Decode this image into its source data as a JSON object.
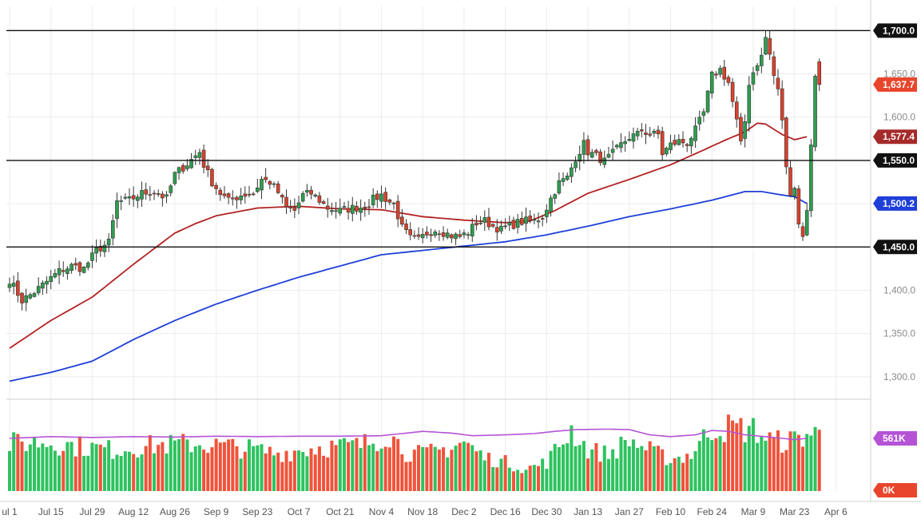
{
  "chart_data": {
    "type": "candlestick",
    "price_axis": {
      "ticks": [
        "1,700.0",
        "1,650.0",
        "1,600.0",
        "1,550.0",
        "1,500.0",
        "1,450.0",
        "1,400.0",
        "1,350.0",
        "1,300.0"
      ],
      "tick_values": [
        1700,
        1650,
        1600,
        1550,
        1500,
        1450,
        1400,
        1350,
        1300
      ],
      "range": [
        1274,
        1728
      ]
    },
    "x_axis": {
      "labels": [
        "ul 1",
        "Jul 15",
        "Jul 29",
        "Aug 12",
        "Aug 26",
        "Sep 9",
        "Sep 23",
        "Oct 7",
        "Oct 21",
        "Nov 4",
        "Nov 18",
        "Dec 2",
        "Dec 16",
        "Dec 30",
        "Jan 13",
        "Jan 27",
        "Feb 10",
        "Feb 24",
        "Mar 9",
        "Mar 23",
        "Apr 6"
      ],
      "label_bar_index": [
        0,
        10,
        20,
        30,
        40,
        50,
        60,
        70,
        80,
        90,
        100,
        110,
        120,
        130,
        140,
        150,
        160,
        170,
        180,
        190,
        200
      ]
    },
    "horizontal_levels": [
      1700,
      1550,
      1450
    ],
    "price_labels": [
      {
        "text": "1,700.0",
        "value": 1700,
        "color": "#111111"
      },
      {
        "text": "1,637.7",
        "value": 1637.7,
        "color": "#e8452c"
      },
      {
        "text": "1,577.4",
        "value": 1577.4,
        "color": "#a52a2a"
      },
      {
        "text": "1,550.0",
        "value": 1550,
        "color": "#111111"
      },
      {
        "text": "1,500.2",
        "value": 1500.2,
        "color": "#1e3fd8"
      },
      {
        "text": "1,450.0",
        "value": 1450,
        "color": "#111111"
      }
    ],
    "ma_fast": {
      "color": "#b22222",
      "points": [
        [
          0,
          1333
        ],
        [
          10,
          1365
        ],
        [
          20,
          1392
        ],
        [
          30,
          1430
        ],
        [
          40,
          1466
        ],
        [
          45,
          1477
        ],
        [
          50,
          1486
        ],
        [
          60,
          1495
        ],
        [
          70,
          1497
        ],
        [
          80,
          1494
        ],
        [
          90,
          1493
        ],
        [
          100,
          1485
        ],
        [
          110,
          1481
        ],
        [
          120,
          1478
        ],
        [
          126,
          1480
        ],
        [
          132,
          1492
        ],
        [
          140,
          1512
        ],
        [
          150,
          1528
        ],
        [
          160,
          1545
        ],
        [
          168,
          1562
        ],
        [
          173,
          1573
        ],
        [
          178,
          1583
        ],
        [
          181,
          1593
        ],
        [
          183,
          1592
        ],
        [
          187,
          1580
        ],
        [
          190,
          1574
        ],
        [
          193,
          1577.4
        ]
      ]
    },
    "ma_slow": {
      "color": "#1e3fd8",
      "points": [
        [
          0,
          1295
        ],
        [
          10,
          1305
        ],
        [
          20,
          1318
        ],
        [
          30,
          1343
        ],
        [
          40,
          1365
        ],
        [
          50,
          1384
        ],
        [
          60,
          1400
        ],
        [
          70,
          1415
        ],
        [
          80,
          1428
        ],
        [
          90,
          1441
        ],
        [
          100,
          1446
        ],
        [
          110,
          1451
        ],
        [
          120,
          1456
        ],
        [
          130,
          1464
        ],
        [
          140,
          1474
        ],
        [
          150,
          1485
        ],
        [
          160,
          1494
        ],
        [
          170,
          1504
        ],
        [
          178,
          1514
        ],
        [
          182,
          1514
        ],
        [
          187,
          1510
        ],
        [
          190,
          1508
        ],
        [
          193,
          1500.2
        ]
      ]
    },
    "candle_anchors": [
      [
        0,
        1412
      ],
      [
        3,
        1388
      ],
      [
        6,
        1398
      ],
      [
        9,
        1410
      ],
      [
        12,
        1422
      ],
      [
        15,
        1428
      ],
      [
        18,
        1425
      ],
      [
        21,
        1446
      ],
      [
        24,
        1455
      ],
      [
        26,
        1502
      ],
      [
        29,
        1504
      ],
      [
        32,
        1512
      ],
      [
        35,
        1514
      ],
      [
        38,
        1506
      ],
      [
        40,
        1534
      ],
      [
        43,
        1546
      ],
      [
        46,
        1560
      ],
      [
        47,
        1545
      ],
      [
        49,
        1525
      ],
      [
        51,
        1512
      ],
      [
        53,
        1503
      ],
      [
        56,
        1510
      ],
      [
        59,
        1512
      ],
      [
        61,
        1528
      ],
      [
        63,
        1525
      ],
      [
        65,
        1513
      ],
      [
        67,
        1495
      ],
      [
        69,
        1492
      ],
      [
        71,
        1510
      ],
      [
        73,
        1512
      ],
      [
        75,
        1504
      ],
      [
        77,
        1495
      ],
      [
        80,
        1492
      ],
      [
        83,
        1495
      ],
      [
        85,
        1496
      ],
      [
        87,
        1500
      ],
      [
        88,
        1505
      ],
      [
        90,
        1510
      ],
      [
        92,
        1502
      ],
      [
        93,
        1500
      ],
      [
        95,
        1472
      ],
      [
        97,
        1460
      ],
      [
        99,
        1458
      ],
      [
        101,
        1466
      ],
      [
        103,
        1470
      ],
      [
        105,
        1467
      ],
      [
        107,
        1463
      ],
      [
        109,
        1462
      ],
      [
        111,
        1467
      ],
      [
        113,
        1478
      ],
      [
        115,
        1480
      ],
      [
        117,
        1474
      ],
      [
        119,
        1470
      ],
      [
        121,
        1474
      ],
      [
        123,
        1478
      ],
      [
        125,
        1480
      ],
      [
        127,
        1480
      ],
      [
        129,
        1485
      ],
      [
        131,
        1506
      ],
      [
        133,
        1524
      ],
      [
        135,
        1530
      ],
      [
        137,
        1553
      ],
      [
        139,
        1569
      ],
      [
        140,
        1560
      ],
      [
        142,
        1555
      ],
      [
        144,
        1549
      ],
      [
        146,
        1558
      ],
      [
        148,
        1568
      ],
      [
        150,
        1577
      ],
      [
        152,
        1580
      ],
      [
        153,
        1585
      ],
      [
        155,
        1580
      ],
      [
        157,
        1580
      ],
      [
        158,
        1558
      ],
      [
        160,
        1568
      ],
      [
        162,
        1572
      ],
      [
        164,
        1570
      ],
      [
        166,
        1585
      ],
      [
        168,
        1605
      ],
      [
        170,
        1648
      ],
      [
        172,
        1655
      ],
      [
        174,
        1640
      ],
      [
        176,
        1595
      ],
      [
        177,
        1568
      ],
      [
        178,
        1595
      ],
      [
        179,
        1640
      ],
      [
        180,
        1652
      ],
      [
        181,
        1663
      ],
      [
        182,
        1670
      ],
      [
        183,
        1692
      ],
      [
        184,
        1672
      ],
      [
        185,
        1648
      ],
      [
        186,
        1630
      ],
      [
        187,
        1598
      ],
      [
        188,
        1540
      ],
      [
        189,
        1514
      ],
      [
        190,
        1520
      ],
      [
        191,
        1476
      ],
      [
        192,
        1465
      ],
      [
        193,
        1490
      ],
      [
        194,
        1570
      ],
      [
        195,
        1650
      ],
      [
        196,
        1637.7
      ]
    ],
    "candle_colors": {
      "up": "#2e9e4f",
      "down": "#d9412c"
    },
    "volume": {
      "axis_labels": [
        {
          "text": "561K",
          "color": "#b553d6"
        },
        {
          "text": "0K",
          "color": "#e8452c"
        }
      ],
      "max": 1000,
      "ma_color": "#b553d6",
      "anchors": [
        [
          0,
          540
        ],
        [
          8,
          560
        ],
        [
          15,
          520
        ],
        [
          25,
          470
        ],
        [
          35,
          520
        ],
        [
          45,
          540
        ],
        [
          55,
          500
        ],
        [
          65,
          430
        ],
        [
          75,
          500
        ],
        [
          85,
          520
        ],
        [
          92,
          650
        ],
        [
          96,
          440
        ],
        [
          100,
          420
        ],
        [
          105,
          470
        ],
        [
          110,
          560
        ],
        [
          115,
          380
        ],
        [
          120,
          330
        ],
        [
          125,
          250
        ],
        [
          130,
          330
        ],
        [
          136,
          700
        ],
        [
          140,
          470
        ],
        [
          145,
          420
        ],
        [
          150,
          580
        ],
        [
          155,
          460
        ],
        [
          160,
          360
        ],
        [
          165,
          420
        ],
        [
          170,
          720
        ],
        [
          175,
          720
        ],
        [
          180,
          700
        ],
        [
          185,
          560
        ],
        [
          190,
          580
        ],
        [
          193,
          650
        ]
      ],
      "ma_points": [
        [
          0,
          600
        ],
        [
          10,
          620
        ],
        [
          20,
          610
        ],
        [
          30,
          620
        ],
        [
          40,
          615
        ],
        [
          50,
          625
        ],
        [
          60,
          620
        ],
        [
          70,
          625
        ],
        [
          80,
          625
        ],
        [
          90,
          630
        ],
        [
          100,
          680
        ],
        [
          107,
          660
        ],
        [
          112,
          630
        ],
        [
          120,
          640
        ],
        [
          127,
          655
        ],
        [
          132,
          680
        ],
        [
          137,
          700
        ],
        [
          145,
          705
        ],
        [
          150,
          700
        ],
        [
          155,
          640
        ],
        [
          160,
          620
        ],
        [
          166,
          640
        ],
        [
          170,
          690
        ],
        [
          174,
          680
        ],
        [
          178,
          640
        ],
        [
          183,
          620
        ],
        [
          187,
          600
        ],
        [
          190,
          585
        ],
        [
          193,
          600
        ]
      ]
    }
  }
}
